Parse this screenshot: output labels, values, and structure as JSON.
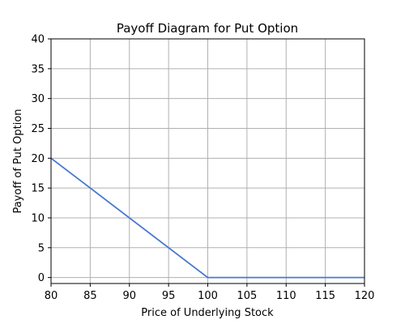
{
  "chart_data": {
    "type": "line",
    "title": "Payoff Diagram for Put Option",
    "xlabel": "Price of Underlying Stock",
    "ylabel": "Payoff of Put Option",
    "xlim": [
      80,
      120
    ],
    "ylim": [
      -1,
      40
    ],
    "xticks": [
      80,
      85,
      90,
      95,
      100,
      105,
      110,
      115,
      120
    ],
    "yticks": [
      0,
      5,
      10,
      15,
      20,
      25,
      30,
      35,
      40
    ],
    "grid": true,
    "series": [
      {
        "color": "#4878cf",
        "points": [
          {
            "x": 80,
            "y": 20
          },
          {
            "x": 100,
            "y": 0
          },
          {
            "x": 120,
            "y": 0
          }
        ]
      }
    ]
  }
}
